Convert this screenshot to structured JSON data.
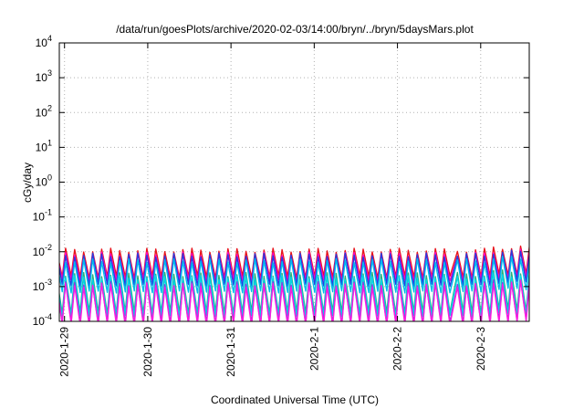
{
  "chart_data": {
    "type": "line",
    "title": "/data/run/goesPlots/archive/2020-02-03/14:00/bryn/../bryn/5daysMars.plot",
    "xlabel": "Coordinated Universal Time (UTC)",
    "ylabel": "cGy/day",
    "yscale": "log",
    "ylim": [
      0.0001,
      10000
    ],
    "xlim": [
      "2020-01-28T22:30",
      "2020-02-03T14:00"
    ],
    "y_ticks": [
      {
        "base": "10",
        "exp": "-4"
      },
      {
        "base": "10",
        "exp": "-3"
      },
      {
        "base": "10",
        "exp": "-2"
      },
      {
        "base": "10",
        "exp": "-1"
      },
      {
        "base": "10",
        "exp": "0"
      },
      {
        "base": "10",
        "exp": "1"
      },
      {
        "base": "10",
        "exp": "2"
      },
      {
        "base": "10",
        "exp": "3"
      },
      {
        "base": "10",
        "exp": "4"
      }
    ],
    "x_ticks": [
      "2020-1-29",
      "2020-1-30",
      "2020-1-31",
      "2020-2-1",
      "2020-2-2",
      "2020-2-3"
    ],
    "grid": true,
    "legend": "none",
    "pattern": {
      "cycle_hours": 2.6,
      "phase_shift_at": "2020-02-02T14:00",
      "level_boost_after": "2020-02-03T00:30"
    },
    "series": [
      {
        "color": "#e8141c",
        "peak": 0.011,
        "trough": 0.0019
      },
      {
        "color": "#ff00cc",
        "peak": 0.0085,
        "trough": 0.0015
      },
      {
        "color": "#2a3adf",
        "peak": 0.008,
        "trough": 0.0011
      },
      {
        "color": "#00bbee",
        "peak": 0.0055,
        "trough": 0.0007
      },
      {
        "color": "#2aaf7a",
        "peak": 0.0022,
        "trough": 0.00018
      },
      {
        "color": "#00d4e8",
        "peak": 0.0018,
        "trough": 0.00014
      },
      {
        "color": "#8a3ce0",
        "peak": 0.0012,
        "trough": 9e-05
      },
      {
        "color": "#ff1ae0",
        "peak": 0.0011,
        "trough": 8e-05
      }
    ]
  }
}
